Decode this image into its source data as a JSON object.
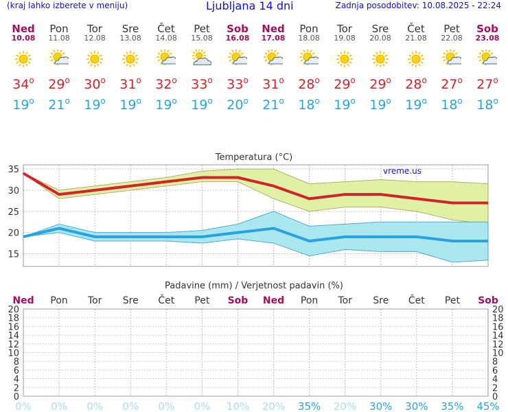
{
  "header": {
    "left": "(kraj lahko izberete v meniju)",
    "title": "Ljubljana 14 dni",
    "right": "Zadnja posodobitev: 10.08.2025 - 22:24"
  },
  "colors": {
    "title_blue": "#1010c8",
    "max_red": "#d2232a",
    "min_blue": "#27a3e3",
    "weekend": "#a0105a",
    "max_band": "#dff0a0",
    "min_band": "#a8e6f0"
  },
  "days": [
    {
      "name": "Ned",
      "date": "10.08",
      "weekend": true,
      "icon": "sun-icon",
      "max": "34",
      "min": "19",
      "precip_prob": "0%"
    },
    {
      "name": "Pon",
      "date": "11.08",
      "weekend": false,
      "icon": "sun-cloud-icon",
      "max": "29",
      "min": "21",
      "precip_prob": "0%"
    },
    {
      "name": "Tor",
      "date": "12.08",
      "weekend": false,
      "icon": "sun-icon",
      "max": "30",
      "min": "19",
      "precip_prob": "0%"
    },
    {
      "name": "Sre",
      "date": "13.08",
      "weekend": false,
      "icon": "sun-icon",
      "max": "31",
      "min": "19",
      "precip_prob": "0%"
    },
    {
      "name": "Čet",
      "date": "14.08",
      "weekend": false,
      "icon": "sun-cloud-icon",
      "max": "32",
      "min": "19",
      "precip_prob": "0%"
    },
    {
      "name": "Pet",
      "date": "15.08",
      "weekend": false,
      "icon": "cloud-sun-icon",
      "max": "33",
      "min": "19",
      "precip_prob": "0%"
    },
    {
      "name": "Sob",
      "date": "16.08",
      "weekend": true,
      "icon": "sun-cloud-icon",
      "max": "33",
      "min": "20",
      "precip_prob": "10%"
    },
    {
      "name": "Ned",
      "date": "17.08",
      "weekend": true,
      "icon": "sun-cloud-icon",
      "max": "31",
      "min": "21",
      "precip_prob": "20%"
    },
    {
      "name": "Pon",
      "date": "18.08",
      "weekend": false,
      "icon": "sun-cloud-icon",
      "max": "28",
      "min": "18",
      "precip_prob": "35%"
    },
    {
      "name": "Tor",
      "date": "19.08",
      "weekend": false,
      "icon": "sun-icon",
      "max": "29",
      "min": "19",
      "precip_prob": "20%"
    },
    {
      "name": "Sre",
      "date": "20.08",
      "weekend": false,
      "icon": "sun-icon",
      "max": "29",
      "min": "19",
      "precip_prob": "30%"
    },
    {
      "name": "Čet",
      "date": "21.08",
      "weekend": false,
      "icon": "sun-icon",
      "max": "28",
      "min": "19",
      "precip_prob": "30%"
    },
    {
      "name": "Pet",
      "date": "22.08",
      "weekend": false,
      "icon": "sun-cloud-icon",
      "max": "27",
      "min": "18",
      "precip_prob": "35%"
    },
    {
      "name": "Sob",
      "date": "23.08",
      "weekend": true,
      "icon": "sun-cloud-icon",
      "max": "27",
      "min": "18",
      "precip_prob": "45%"
    }
  ],
  "chart_data": [
    {
      "type": "line",
      "title": "Temperatura (°C)",
      "watermark": "vreme.us",
      "x": [
        "10.08",
        "11.08",
        "12.08",
        "13.08",
        "14.08",
        "15.08",
        "16.08",
        "17.08",
        "18.08",
        "19.08",
        "20.08",
        "21.08",
        "22.08",
        "23.08"
      ],
      "ylim": [
        12,
        36
      ],
      "yticks": [
        15,
        20,
        25,
        30,
        35
      ],
      "grid": true,
      "series": [
        {
          "name": "max",
          "values": [
            34,
            29,
            30,
            31,
            32,
            33,
            33,
            31,
            28,
            29,
            29,
            28,
            27,
            27
          ],
          "band_low": [
            34,
            28,
            29,
            30,
            31,
            32,
            32,
            28,
            25,
            26,
            26,
            25,
            23,
            22
          ],
          "band_high": [
            34,
            30,
            31,
            32,
            33,
            34.5,
            35,
            35,
            31.5,
            32,
            32.5,
            32,
            32,
            31.5
          ]
        },
        {
          "name": "min",
          "values": [
            19,
            21,
            19,
            19,
            19,
            19,
            20,
            21,
            18,
            19,
            19,
            19,
            18,
            18
          ],
          "band_low": [
            19,
            20,
            18,
            18,
            18,
            17.5,
            18.5,
            17.5,
            14.5,
            16,
            15.5,
            15.5,
            13,
            13.5
          ],
          "band_high": [
            19,
            22,
            20,
            20,
            20,
            20.5,
            22,
            25,
            21.5,
            22,
            22.5,
            22.5,
            22.5,
            22.5
          ]
        }
      ]
    },
    {
      "type": "bar",
      "title": "Padavine (mm) / Verjetnost padavin (%)",
      "categories": [
        "Ned",
        "Pon",
        "Tor",
        "Sre",
        "Čet",
        "Pet",
        "Sob",
        "Ned",
        "Pon",
        "Tor",
        "Sre",
        "Čet",
        "Pet",
        "Sob"
      ],
      "values": [
        0,
        0,
        0,
        0,
        0,
        0,
        0,
        0,
        0,
        0,
        0,
        0,
        0,
        0
      ],
      "probabilities": [
        "0%",
        "0%",
        "0%",
        "0%",
        "0%",
        "0%",
        "10%",
        "20%",
        "35%",
        "20%",
        "30%",
        "30%",
        "35%",
        "45%"
      ],
      "ylim": [
        0,
        20
      ],
      "yticks": [
        0,
        2,
        4,
        6,
        8,
        10,
        12,
        14,
        16,
        18,
        20
      ],
      "grid": true
    }
  ]
}
